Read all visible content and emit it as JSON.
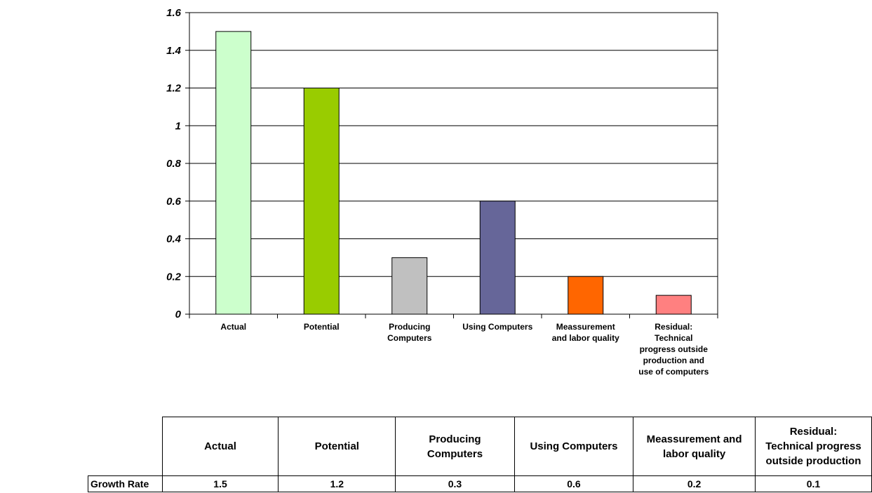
{
  "chart_data": {
    "type": "bar",
    "categories": [
      [
        "Actual"
      ],
      [
        "Potential"
      ],
      [
        "Producing",
        "Computers"
      ],
      [
        "Using Computers"
      ],
      [
        "Meassurement",
        "and labor quality"
      ],
      [
        "Residual:",
        "Technical",
        "progress outside",
        "production and",
        "use of computers"
      ]
    ],
    "values": [
      1.5,
      1.2,
      0.3,
      0.6,
      0.2,
      0.1
    ],
    "colors": [
      "#ccffcc",
      "#99cc00",
      "#c0c0c0",
      "#666699",
      "#ff6600",
      "#ff8080"
    ],
    "ylim": [
      0,
      1.6
    ],
    "yticks": [
      "0",
      "0.2",
      "0.4",
      "0.6",
      "0.8",
      "1",
      "1.2",
      "1.4",
      "1.6"
    ],
    "grid": true,
    "title": "",
    "xlabel": "",
    "ylabel": ""
  },
  "table": {
    "headers": [
      [
        "Actual"
      ],
      [
        "Potential"
      ],
      [
        "Producing",
        "Computers"
      ],
      [
        "Using Computers"
      ],
      [
        "Meassurement and",
        "labor quality"
      ],
      [
        "Residual:",
        "Technical progress",
        "outside production"
      ]
    ],
    "row_label": "Growth Rate",
    "values": [
      "1.5",
      "1.2",
      "0.3",
      "0.6",
      "0.2",
      "0.1"
    ]
  }
}
